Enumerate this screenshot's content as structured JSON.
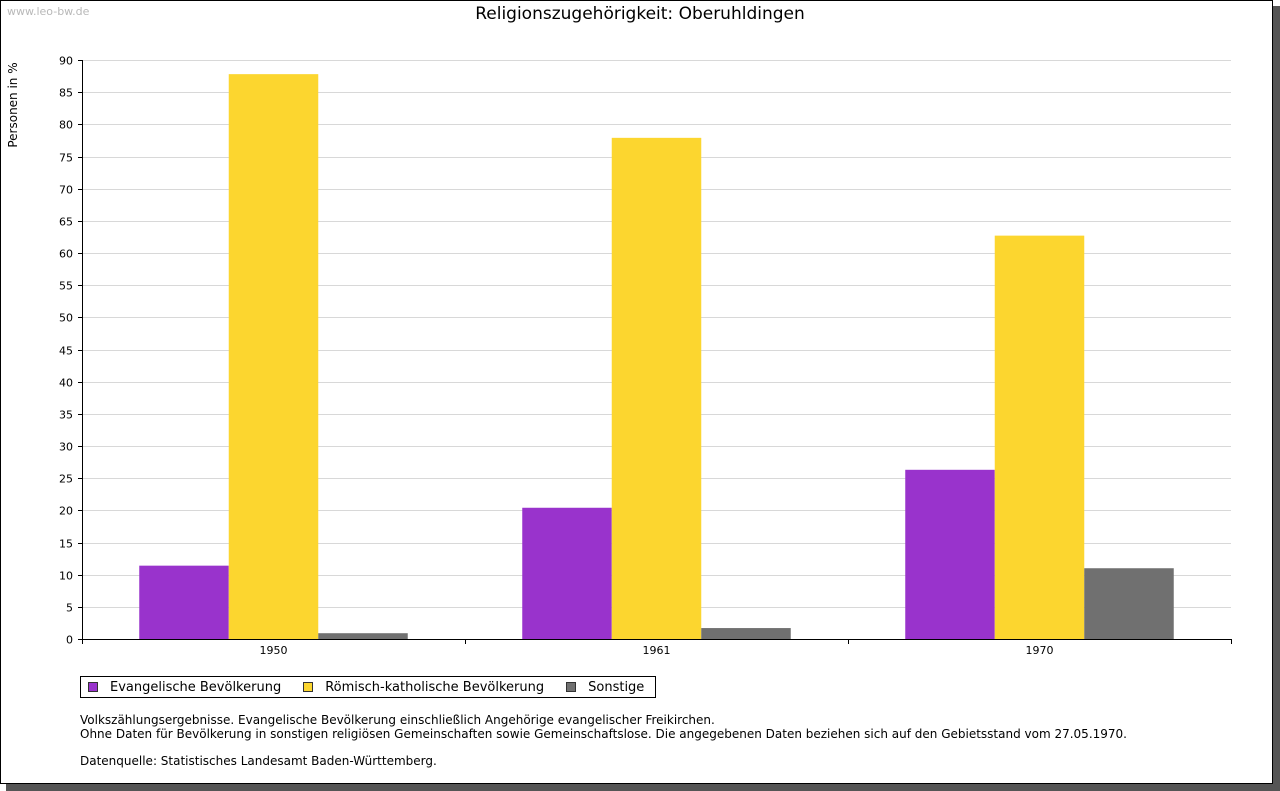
{
  "watermark": "www.leo-bw.de",
  "chart_data": {
    "type": "bar",
    "title": "Religionszugehörigkeit: Oberuhldingen",
    "ylabel": "Personen in %",
    "xlabel": "",
    "ylim": [
      0,
      90
    ],
    "ytick_step": 5,
    "grid": true,
    "categories": [
      "1950",
      "1961",
      "1970"
    ],
    "series": [
      {
        "name": "Evangelische Bevölkerung",
        "color": "#9933cc",
        "values": [
          11.4,
          20.4,
          26.3
        ]
      },
      {
        "name": "Römisch-katholische Bevölkerung",
        "color": "#fcd62f",
        "values": [
          87.8,
          77.9,
          62.7
        ]
      },
      {
        "name": "Sonstige",
        "color": "#707070",
        "values": [
          0.9,
          1.7,
          11.0
        ]
      }
    ]
  },
  "notes": {
    "line1": "Volkszählungsergebnisse. Evangelische Bevölkerung einschließlich Angehörige evangelischer Freikirchen.",
    "line2": "Ohne Daten für Bevölkerung in sonstigen religiösen Gemeinschaften sowie Gemeinschaftslose. Die angegebenen Daten beziehen sich auf den Gebietsstand vom 27.05.1970.",
    "source": "Datenquelle: Statistisches Landesamt Baden-Württemberg."
  }
}
